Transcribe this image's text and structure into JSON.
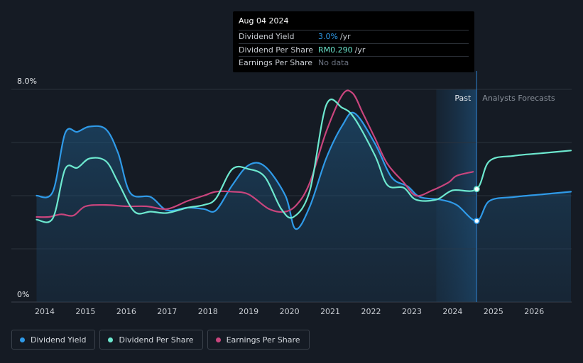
{
  "chart_data": {
    "type": "line",
    "ylim": [
      0,
      8.0
    ],
    "y_tick_labels": [
      "8.0%",
      "0%"
    ],
    "x_tick_labels": [
      "2014",
      "2015",
      "2016",
      "2017",
      "2018",
      "2019",
      "2020",
      "2021",
      "2022",
      "2023",
      "2024",
      "2025",
      "2026"
    ],
    "x_tick_values": [
      2014,
      2015,
      2016,
      2017,
      2018,
      2019,
      2020,
      2021,
      2022,
      2023,
      2024,
      2025,
      2026
    ],
    "xlim": [
      2013.2,
      2026.9
    ],
    "divider_x": 2024.59,
    "forecast_shade_start": 2023.6,
    "past_label": "Past",
    "forecast_label": "Analysts Forecasts",
    "series": [
      {
        "name": "Dividend Yield",
        "color": "#2f9ae8",
        "area": true,
        "points": [
          [
            2013.8,
            4.0
          ],
          [
            2014.2,
            4.15
          ],
          [
            2014.5,
            6.35
          ],
          [
            2014.8,
            6.4
          ],
          [
            2015.1,
            6.6
          ],
          [
            2015.5,
            6.5
          ],
          [
            2015.8,
            5.6
          ],
          [
            2016.1,
            4.1
          ],
          [
            2016.6,
            3.95
          ],
          [
            2017.0,
            3.45
          ],
          [
            2017.5,
            3.55
          ],
          [
            2017.9,
            3.5
          ],
          [
            2018.2,
            3.45
          ],
          [
            2018.6,
            4.4
          ],
          [
            2019.0,
            5.15
          ],
          [
            2019.4,
            5.1
          ],
          [
            2019.9,
            4.0
          ],
          [
            2020.15,
            2.75
          ],
          [
            2020.5,
            3.6
          ],
          [
            2020.9,
            5.4
          ],
          [
            2021.3,
            6.65
          ],
          [
            2021.6,
            7.1
          ],
          [
            2022.1,
            5.95
          ],
          [
            2022.5,
            4.7
          ],
          [
            2022.9,
            4.35
          ],
          [
            2023.2,
            3.95
          ],
          [
            2023.7,
            3.85
          ],
          [
            2024.1,
            3.65
          ],
          [
            2024.59,
            3.05
          ],
          [
            2024.9,
            3.8
          ],
          [
            2025.5,
            3.95
          ],
          [
            2026.2,
            4.05
          ],
          [
            2026.9,
            4.15
          ]
        ]
      },
      {
        "name": "Dividend Per Share",
        "color": "#6de8cf",
        "area": false,
        "points": [
          [
            2013.8,
            3.1
          ],
          [
            2014.2,
            3.15
          ],
          [
            2014.5,
            5.0
          ],
          [
            2014.8,
            5.05
          ],
          [
            2015.1,
            5.4
          ],
          [
            2015.5,
            5.3
          ],
          [
            2015.8,
            4.5
          ],
          [
            2016.2,
            3.4
          ],
          [
            2016.6,
            3.4
          ],
          [
            2017.0,
            3.35
          ],
          [
            2017.5,
            3.55
          ],
          [
            2017.9,
            3.65
          ],
          [
            2018.2,
            3.9
          ],
          [
            2018.6,
            5.0
          ],
          [
            2019.0,
            5.0
          ],
          [
            2019.4,
            4.7
          ],
          [
            2019.8,
            3.5
          ],
          [
            2020.1,
            3.2
          ],
          [
            2020.5,
            4.2
          ],
          [
            2020.9,
            7.4
          ],
          [
            2021.3,
            7.3
          ],
          [
            2021.6,
            6.9
          ],
          [
            2022.1,
            5.5
          ],
          [
            2022.4,
            4.4
          ],
          [
            2022.8,
            4.3
          ],
          [
            2023.1,
            3.85
          ],
          [
            2023.6,
            3.85
          ],
          [
            2024.0,
            4.2
          ],
          [
            2024.59,
            4.25
          ],
          [
            2024.9,
            5.3
          ],
          [
            2025.5,
            5.5
          ],
          [
            2026.2,
            5.6
          ],
          [
            2026.9,
            5.7
          ]
        ]
      },
      {
        "name": "Earnings Per Share",
        "color": "#c9457d",
        "area": false,
        "points": [
          [
            2013.8,
            3.2
          ],
          [
            2014.1,
            3.2
          ],
          [
            2014.4,
            3.3
          ],
          [
            2014.7,
            3.25
          ],
          [
            2015.0,
            3.6
          ],
          [
            2015.5,
            3.65
          ],
          [
            2016.0,
            3.6
          ],
          [
            2016.5,
            3.6
          ],
          [
            2017.0,
            3.5
          ],
          [
            2017.5,
            3.8
          ],
          [
            2017.9,
            4.0
          ],
          [
            2018.2,
            4.15
          ],
          [
            2018.6,
            4.15
          ],
          [
            2019.0,
            4.05
          ],
          [
            2019.5,
            3.5
          ],
          [
            2019.9,
            3.4
          ],
          [
            2020.2,
            3.7
          ],
          [
            2020.5,
            4.5
          ],
          [
            2020.9,
            6.4
          ],
          [
            2021.3,
            7.8
          ],
          [
            2021.55,
            7.85
          ],
          [
            2021.8,
            7.1
          ],
          [
            2022.1,
            6.15
          ],
          [
            2022.4,
            5.2
          ],
          [
            2022.8,
            4.5
          ],
          [
            2023.1,
            4.0
          ],
          [
            2023.5,
            4.2
          ],
          [
            2023.9,
            4.5
          ],
          [
            2024.1,
            4.75
          ],
          [
            2024.5,
            4.9
          ]
        ]
      }
    ],
    "markers": [
      {
        "series": "Dividend Yield",
        "x": 2024.59,
        "y": 3.05
      },
      {
        "series": "Dividend Per Share",
        "x": 2024.59,
        "y": 4.25
      }
    ],
    "gridlines_y": [
      2.0,
      4.0,
      6.0,
      8.0
    ]
  },
  "tooltip": {
    "date": "Aug 04 2024",
    "rows": [
      {
        "label": "Dividend Yield",
        "value": "3.0%",
        "unit": "/yr"
      },
      {
        "label": "Dividend Per Share",
        "value": "RM0.290",
        "unit": "/yr"
      },
      {
        "label": "Earnings Per Share",
        "value": "No data",
        "unit": ""
      }
    ]
  },
  "legend": {
    "items": [
      {
        "label": "Dividend Yield",
        "color": "#2f9ae8"
      },
      {
        "label": "Dividend Per Share",
        "color": "#6de8cf"
      },
      {
        "label": "Earnings Per Share",
        "color": "#c9457d"
      }
    ]
  }
}
